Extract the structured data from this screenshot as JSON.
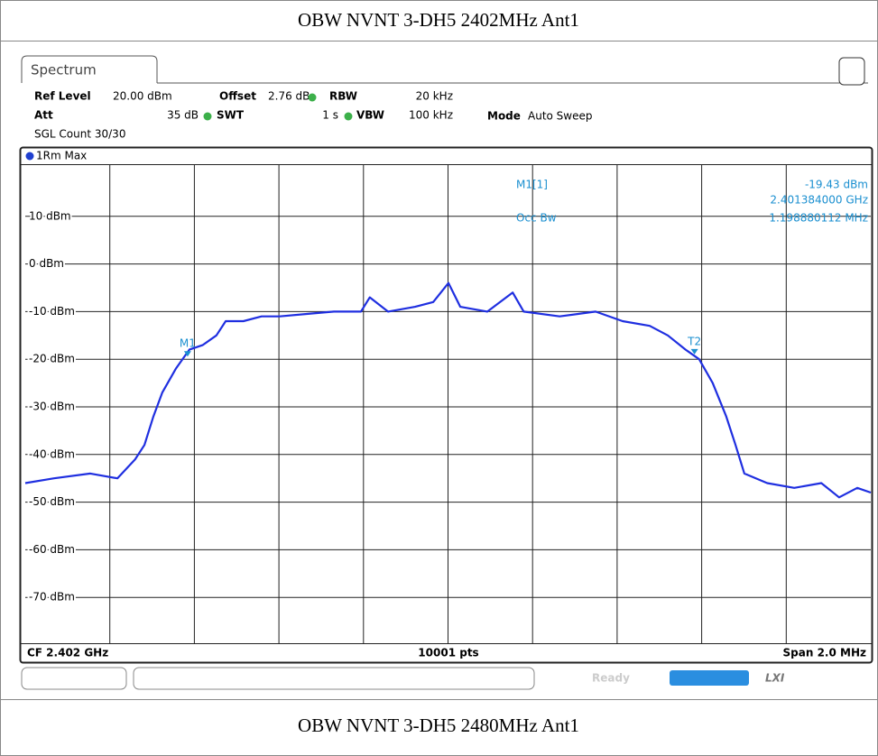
{
  "title": "OBW NVNT 3-DH5 2402MHz Ant1",
  "next_title": "OBW NVNT 3-DH5 2480MHz Ant1",
  "tab": "Spectrum",
  "settings": {
    "ref_level_label": "Ref Level",
    "ref_level": "20.00 dBm",
    "offset_label": "Offset",
    "offset": "2.76 dB",
    "rbw_label": "RBW",
    "rbw": "20 kHz",
    "att_label": "Att",
    "att": "35 dB",
    "swt_label": "SWT",
    "swt": "1 s",
    "vbw_label": "VBW",
    "vbw": "100 kHz",
    "mode_label": "Mode",
    "mode": "Auto Sweep",
    "count": "SGL Count 30/30"
  },
  "trace_label": "1Rm Max",
  "marker_info": {
    "name": "M1[1]",
    "level": "-19.43 dBm",
    "freq": "2.401384000 GHz",
    "occ_label": "Occ Bw",
    "occ": "1.198880112 MHz"
  },
  "chart": {
    "type": "line",
    "color": "#1f2fe0",
    "xlim": [
      2401,
      2403
    ],
    "xticks": [
      2401.2,
      2401.4,
      2401.6,
      2401.8,
      2402.0,
      2402.2,
      2402.4,
      2402.6,
      2402.8
    ],
    "ylim": [
      -80,
      20
    ],
    "yticks": [
      {
        "value": 10,
        "label": "10 dBm"
      },
      {
        "value": 0,
        "label": "0 dBm"
      },
      {
        "value": -10,
        "label": "-10 dBm"
      },
      {
        "value": -20,
        "label": "-20 dBm"
      },
      {
        "value": -30,
        "label": "-30 dBm"
      },
      {
        "value": -40,
        "label": "-40 dBm"
      },
      {
        "value": -50,
        "label": "-50 dBm"
      },
      {
        "value": -60,
        "label": "-60 dBm"
      },
      {
        "value": -70,
        "label": "-70 dBm"
      }
    ],
    "grid": true,
    "x": [
      2401.0,
      2401.068,
      2401.154,
      2401.218,
      2401.26,
      2401.282,
      2401.303,
      2401.324,
      2401.356,
      2401.388,
      2401.42,
      2401.452,
      2401.474,
      2401.516,
      2401.559,
      2401.602,
      2401.666,
      2401.73,
      2401.794,
      2401.815,
      2401.858,
      2401.922,
      2401.965,
      2402.001,
      2402.029,
      2402.093,
      2402.153,
      2402.179,
      2402.264,
      2402.349,
      2402.413,
      2402.477,
      2402.52,
      2402.562,
      2402.594,
      2402.626,
      2402.658,
      2402.68,
      2402.701,
      2402.755,
      2402.819,
      2402.883,
      2402.925,
      2402.968,
      2403.0
    ],
    "values": [
      -46,
      -45,
      -44,
      -45,
      -41,
      -38,
      -32,
      -27,
      -22,
      -18,
      -17,
      -15,
      -12,
      -12,
      -11,
      -11,
      -10.5,
      -10,
      -10,
      -7,
      -10,
      -9,
      -8,
      -4,
      -9,
      -10,
      -6,
      -10,
      -11,
      -10,
      -12,
      -13,
      -15,
      -18,
      -20,
      -25,
      -32,
      -38,
      -44,
      -46,
      -47,
      -46,
      -49,
      -47,
      -48
    ],
    "markers": [
      {
        "name": "M1",
        "x": 2401.384,
        "value": -19.43
      },
      {
        "name": "T2",
        "x": 2402.583,
        "value": -19
      }
    ]
  },
  "footer": {
    "cf": "CF 2.402 GHz",
    "points": "10001 pts",
    "span": "Span 2.0 MHz"
  },
  "status": "Ready"
}
